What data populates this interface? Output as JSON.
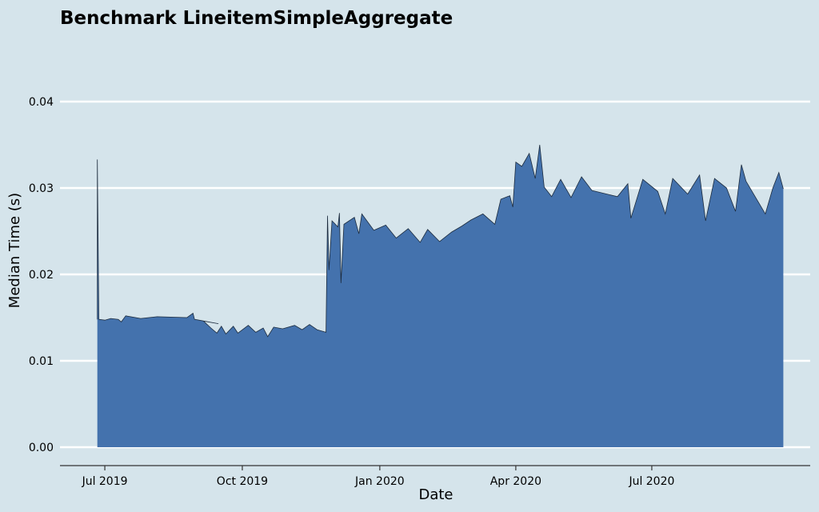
{
  "chart_data": {
    "type": "area",
    "title": "Benchmark LineitemSimpleAggregate",
    "xlabel": "Date",
    "ylabel": "Median Time (s)",
    "ylim": [
      0,
      0.04
    ],
    "y_ticks": [
      "0.00",
      "0.01",
      "0.02",
      "0.03",
      "0.04"
    ],
    "x_ticks": [
      "Jul 2019",
      "Oct 2019",
      "Jan 2020",
      "Apr 2020",
      "Jul 2020"
    ],
    "x_tick_dates": [
      "2019-07-01",
      "2019-10-01",
      "2020-01-01",
      "2020-04-01",
      "2020-07-01"
    ],
    "xlim": [
      "2019-06-01",
      "2020-10-15"
    ],
    "grid": "horizontal",
    "colors": {
      "fill": "#4472ad",
      "line": "#1c2b3d",
      "grid": "#ffffff",
      "background": "#d5e4eb"
    },
    "series": [
      {
        "points": [
          [
            "2019-06-26",
            0.0148
          ],
          [
            "2019-06-26",
            0.0333
          ],
          [
            "2019-06-27",
            0.0148
          ],
          [
            "2019-07-01",
            0.0147
          ],
          [
            "2019-07-05",
            0.0149
          ],
          [
            "2019-07-10",
            0.0148
          ],
          [
            "2019-07-12",
            0.0145
          ],
          [
            "2019-07-15",
            0.0152
          ],
          [
            "2019-07-25",
            0.0149
          ],
          [
            "2019-08-05",
            0.0151
          ],
          [
            "2019-08-25",
            0.015
          ],
          [
            "2019-08-29",
            0.0155
          ],
          [
            "2019-08-30",
            0.0148
          ],
          [
            "2019-09-15",
            0.0143
          ],
          [
            "2019-09-05",
            0.0146
          ],
          [
            "2019-09-10",
            0.0138
          ],
          [
            "2019-09-14",
            0.0132
          ],
          [
            "2019-09-17",
            0.014
          ],
          [
            "2019-09-20",
            0.0131
          ],
          [
            "2019-09-25",
            0.014
          ],
          [
            "2019-09-28",
            0.0132
          ],
          [
            "2019-10-05",
            0.0141
          ],
          [
            "2019-10-10",
            0.0133
          ],
          [
            "2019-10-15",
            0.0138
          ],
          [
            "2019-10-18",
            0.0128
          ],
          [
            "2019-10-22",
            0.0139
          ],
          [
            "2019-10-28",
            0.0137
          ],
          [
            "2019-11-05",
            0.0141
          ],
          [
            "2019-11-10",
            0.0136
          ],
          [
            "2019-11-15",
            0.0142
          ],
          [
            "2019-11-20",
            0.0136
          ],
          [
            "2019-11-26",
            0.0133
          ],
          [
            "2019-11-27",
            0.0268
          ],
          [
            "2019-11-28",
            0.0205
          ],
          [
            "2019-11-30",
            0.0262
          ],
          [
            "2019-12-04",
            0.0255
          ],
          [
            "2019-12-05",
            0.0271
          ],
          [
            "2019-12-06",
            0.019
          ],
          [
            "2019-12-08",
            0.0258
          ],
          [
            "2019-12-15",
            0.0266
          ],
          [
            "2019-12-18",
            0.0247
          ],
          [
            "2019-12-20",
            0.027
          ],
          [
            "2019-12-28",
            0.0251
          ],
          [
            "2020-01-05",
            0.0257
          ],
          [
            "2020-01-12",
            0.0242
          ],
          [
            "2020-01-20",
            0.0253
          ],
          [
            "2020-01-28",
            0.0237
          ],
          [
            "2020-02-02",
            0.0252
          ],
          [
            "2020-02-10",
            0.0238
          ],
          [
            "2020-02-18",
            0.0249
          ],
          [
            "2020-02-25",
            0.0256
          ],
          [
            "2020-03-02",
            0.0263
          ],
          [
            "2020-03-10",
            0.027
          ],
          [
            "2020-03-18",
            0.0258
          ],
          [
            "2020-03-22",
            0.0287
          ],
          [
            "2020-03-28",
            0.0291
          ],
          [
            "2020-03-30",
            0.0278
          ],
          [
            "2020-04-01",
            0.033
          ],
          [
            "2020-04-05",
            0.0325
          ],
          [
            "2020-04-10",
            0.034
          ],
          [
            "2020-04-14",
            0.0311
          ],
          [
            "2020-04-17",
            0.035
          ],
          [
            "2020-04-20",
            0.0301
          ],
          [
            "2020-04-25",
            0.029
          ],
          [
            "2020-05-01",
            0.031
          ],
          [
            "2020-05-08",
            0.0289
          ],
          [
            "2020-05-15",
            0.0313
          ],
          [
            "2020-05-22",
            0.0297
          ],
          [
            "2020-06-08",
            0.029
          ],
          [
            "2020-06-15",
            0.0305
          ],
          [
            "2020-06-17",
            0.0265
          ],
          [
            "2020-06-25",
            0.031
          ],
          [
            "2020-07-05",
            0.0296
          ],
          [
            "2020-07-10",
            0.027
          ],
          [
            "2020-07-15",
            0.0311
          ],
          [
            "2020-07-25",
            0.0293
          ],
          [
            "2020-08-02",
            0.0315
          ],
          [
            "2020-08-06",
            0.0262
          ],
          [
            "2020-08-12",
            0.0311
          ],
          [
            "2020-08-20",
            0.03
          ],
          [
            "2020-08-26",
            0.0273
          ],
          [
            "2020-08-30",
            0.0327
          ],
          [
            "2020-09-02",
            0.0308
          ],
          [
            "2020-09-15",
            0.027
          ],
          [
            "2020-09-20",
            0.03
          ],
          [
            "2020-09-24",
            0.0318
          ],
          [
            "2020-09-27",
            0.0299
          ]
        ]
      }
    ]
  }
}
